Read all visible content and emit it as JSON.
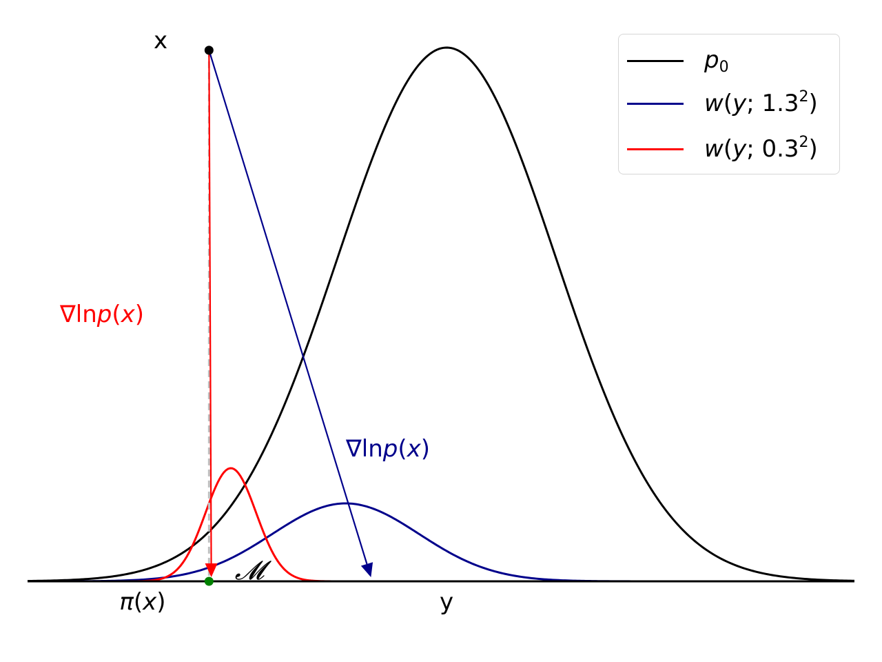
{
  "chart_data": {
    "type": "line",
    "title": "",
    "xlabel": "y",
    "ylabel": "",
    "grid": false,
    "legend_placement": "top-right",
    "xlim": [
      -3.2,
      4.0
    ],
    "ylim": [
      0,
      1.0
    ],
    "series": [
      {
        "name": "p0",
        "legend_label": "p_0",
        "color": "#000000",
        "distribution": "gaussian",
        "mean": 0.45,
        "sigma": 0.95,
        "peak": 1.0
      },
      {
        "name": "w(y;1.3²)",
        "legend_label": "w(y; 1.3^2)",
        "color": "#00008b",
        "distribution": "gaussian",
        "mean": -0.43,
        "sigma": 0.64,
        "peak": 0.146
      },
      {
        "name": "w(y;0.3²)",
        "legend_label": "w(y; 0.3^2)",
        "color": "#ff0000",
        "distribution": "gaussian",
        "mean": -1.43,
        "sigma": 0.22,
        "peak": 0.212
      }
    ],
    "points": [
      {
        "label": "x",
        "x": -1.62,
        "y": 0.995,
        "color": "#000000"
      },
      {
        "label": "π(x)",
        "x": -1.62,
        "y": 0.0,
        "color": "#008000"
      }
    ],
    "arrows": [
      {
        "label": "∇lnp(x)",
        "color": "#ff0000",
        "from": [
          -1.62,
          0.995
        ],
        "to": [
          -1.6,
          0.0
        ]
      },
      {
        "label": "∇lnp(x)",
        "color": "#00008b",
        "from": [
          -1.62,
          0.995
        ],
        "to": [
          -0.21,
          0.0
        ]
      }
    ],
    "annotations": {
      "x_point": "x",
      "projection": "π(x)",
      "y_axis_label": "y",
      "manifold": "𝓜",
      "grad_red": "∇lnp(x)",
      "grad_blue": "∇lnp(x)"
    },
    "legend": [
      {
        "prefix": "",
        "italic": "p",
        "sub": "0",
        "sup": "",
        "suffix": ""
      },
      {
        "prefix": "",
        "italic": "w",
        "sub": "",
        "sup": "2",
        "suffix": ""
      },
      {
        "prefix": "",
        "italic": "w",
        "sub": "",
        "sup": "2",
        "suffix": ""
      }
    ]
  }
}
